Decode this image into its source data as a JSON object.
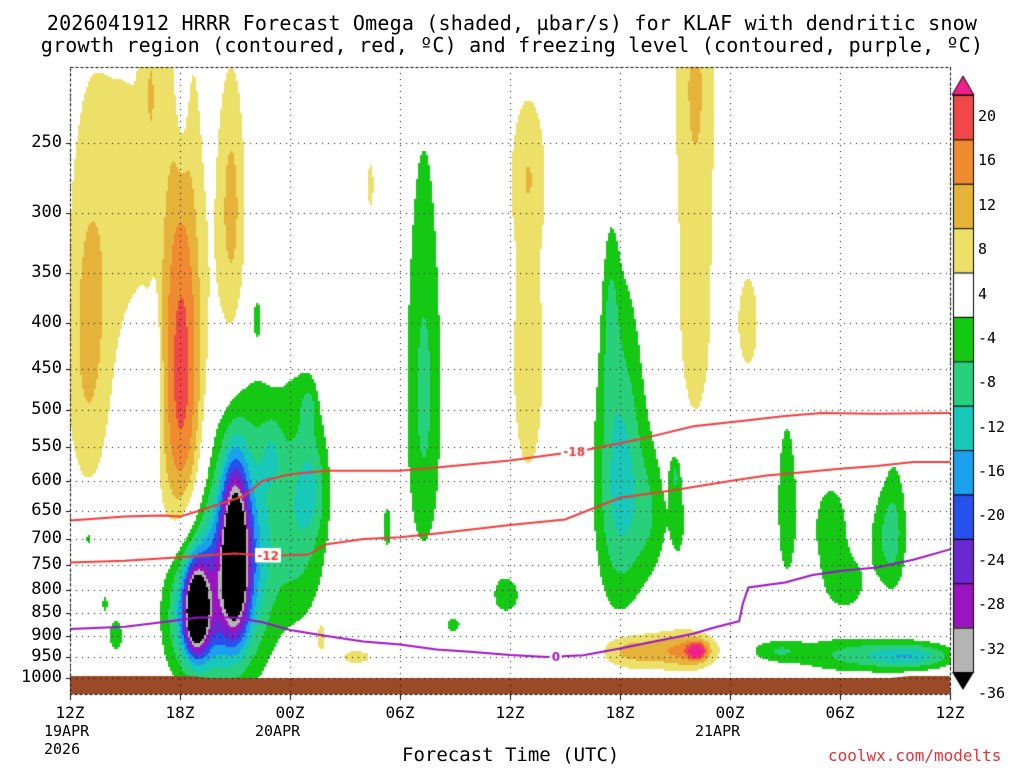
{
  "title": {
    "line1": "2026041912 HRRR Forecast Omega (shaded, µbar/s) for KLAF with dendritic snow",
    "line2": "growth region (contoured, red, ºC) and freezing level (contoured, purple, ºC)"
  },
  "chart_data": {
    "type": "heatmap",
    "title": "2026041912 HRRR Forecast Omega (shaded, µbar/s) for KLAF with dendritic snow growth region (contoured, red, ºC) and freezing level (contoured, purple, ºC)",
    "xlabel": "Forecast Time (UTC)",
    "ylabel": "",
    "x_range_hours": [
      0,
      48
    ],
    "y_range_hPa": [
      200,
      1025
    ],
    "y_ticks": [
      "250",
      "300",
      "350",
      "400",
      "450",
      "500",
      "550",
      "600",
      "650",
      "700",
      "750",
      "800",
      "850",
      "900",
      "950",
      "1000"
    ],
    "x_ticks": [
      {
        "label": "12Z",
        "hour": 0,
        "sub1": "19APR",
        "sub2": "2026"
      },
      {
        "label": "18Z",
        "hour": 6
      },
      {
        "label": "00Z",
        "hour": 12,
        "sub1": "20APR"
      },
      {
        "label": "06Z",
        "hour": 18
      },
      {
        "label": "12Z",
        "hour": 24
      },
      {
        "label": "18Z",
        "hour": 30
      },
      {
        "label": "00Z",
        "hour": 36,
        "sub1": "21APR"
      },
      {
        "label": "06Z",
        "hour": 42
      },
      {
        "label": "12Z",
        "hour": 48
      }
    ],
    "colorbar": {
      "labels": [
        "20",
        "16",
        "12",
        "8",
        "4",
        "-4",
        "-8",
        "-12",
        "-16",
        "-20",
        "-24",
        "-28",
        "-32",
        "-36"
      ],
      "colors": [
        "#f0208a",
        "#f04848",
        "#f08a30",
        "#e6b33a",
        "#ece068",
        "#ffffff",
        "#14c814",
        "#28d07c",
        "#18c8b8",
        "#1aa0ec",
        "#2850ec",
        "#6a28d2",
        "#9a14c0",
        "#b4b4b4",
        "#000000"
      ]
    },
    "blobs": [
      {
        "h": 1.0,
        "p": 415,
        "w": 1.3,
        "d": 200,
        "v": 9
      },
      {
        "h": 3.2,
        "p": 290,
        "w": 1.8,
        "d": 150,
        "v": 5
      },
      {
        "h": 4.4,
        "p": 210,
        "w": 0.5,
        "d": 60,
        "v": 5
      },
      {
        "h": 6.1,
        "p": 460,
        "w": 1.2,
        "d": 240,
        "v": 18
      },
      {
        "h": 6.1,
        "p": 210,
        "w": 0.4,
        "d": 60,
        "v": -6
      },
      {
        "h": 4.7,
        "p": 470,
        "w": 0.3,
        "d": 100,
        "v": -6
      },
      {
        "h": 8.8,
        "p": 380,
        "w": 1.0,
        "d": 200,
        "v": 6
      },
      {
        "h": 8.8,
        "p": 290,
        "w": 0.7,
        "d": 80,
        "v": 5
      },
      {
        "h": 10.2,
        "p": 395,
        "w": 0.2,
        "d": 20,
        "v": -6
      },
      {
        "h": 7.0,
        "p": 840,
        "w": 1.6,
        "d": 150,
        "v": -24
      },
      {
        "h": 6.9,
        "p": 845,
        "w": 0.55,
        "d": 80,
        "v": -37
      },
      {
        "h": 9.2,
        "p": 730,
        "w": 1.8,
        "d": 230,
        "v": -22
      },
      {
        "h": 9.0,
        "p": 735,
        "w": 0.65,
        "d": 140,
        "v": -38
      },
      {
        "h": 12.5,
        "p": 660,
        "w": 1.5,
        "d": 200,
        "v": -10
      },
      {
        "h": 11.0,
        "p": 560,
        "w": 0.6,
        "d": 50,
        "v": -6
      },
      {
        "h": 13.0,
        "p": 500,
        "w": 0.4,
        "d": 30,
        "v": -6
      },
      {
        "h": 13.2,
        "p": 610,
        "w": 0.8,
        "d": 80,
        "v": -6
      },
      {
        "h": 2.5,
        "p": 900,
        "w": 0.5,
        "d": 50,
        "v": -6
      },
      {
        "h": 1.9,
        "p": 830,
        "w": 0.2,
        "d": 20,
        "v": -6
      },
      {
        "h": 1.0,
        "p": 700,
        "w": 0.2,
        "d": 20,
        "v": -6
      },
      {
        "h": 13.7,
        "p": 900,
        "w": 0.3,
        "d": 40,
        "v": 8
      },
      {
        "h": 15.6,
        "p": 950,
        "w": 1.5,
        "d": 30,
        "v": 5
      },
      {
        "h": 16.4,
        "p": 280,
        "w": 0.3,
        "d": 30,
        "v": 5
      },
      {
        "h": 19.3,
        "p": 480,
        "w": 1.0,
        "d": 250,
        "v": -9
      },
      {
        "h": 17.3,
        "p": 680,
        "w": 0.3,
        "d": 50,
        "v": -6
      },
      {
        "h": 23.8,
        "p": 810,
        "w": 1.0,
        "d": 55,
        "v": -6
      },
      {
        "h": 20.9,
        "p": 875,
        "w": 0.5,
        "d": 20,
        "v": -6
      },
      {
        "h": 25.0,
        "p": 440,
        "w": 1.2,
        "d": 210,
        "v": 6
      },
      {
        "h": 25.0,
        "p": 270,
        "w": 1.0,
        "d": 50,
        "v": 5
      },
      {
        "h": 30.0,
        "p": 600,
        "w": 1.3,
        "d": 220,
        "v": -14
      },
      {
        "h": 31.7,
        "p": 660,
        "w": 1.0,
        "d": 120,
        "v": -6
      },
      {
        "h": 33.2,
        "p": 660,
        "w": 0.5,
        "d": 90,
        "v": -6
      },
      {
        "h": 29.5,
        "p": 400,
        "w": 0.4,
        "d": 80,
        "v": -6
      },
      {
        "h": 30.5,
        "p": 935,
        "w": 1.6,
        "d": 45,
        "v": 10
      },
      {
        "h": 33.5,
        "p": 935,
        "w": 1.8,
        "d": 45,
        "v": 13
      },
      {
        "h": 34.2,
        "p": 935,
        "w": 0.5,
        "d": 20,
        "v": 17
      },
      {
        "h": 34.1,
        "p": 360,
        "w": 1.3,
        "d": 220,
        "v": 6
      },
      {
        "h": 34.1,
        "p": 200,
        "w": 1.1,
        "d": 80,
        "v": 5
      },
      {
        "h": 37.0,
        "p": 400,
        "w": 1.0,
        "d": 90,
        "v": 5
      },
      {
        "h": 33.0,
        "p": 590,
        "w": 0.3,
        "d": 30,
        "v": -6
      },
      {
        "h": 39.1,
        "p": 640,
        "w": 0.7,
        "d": 180,
        "v": -6
      },
      {
        "h": 41.5,
        "p": 680,
        "w": 1.2,
        "d": 100,
        "v": -6
      },
      {
        "h": 42.3,
        "p": 790,
        "w": 1.2,
        "d": 60,
        "v": -6
      },
      {
        "h": 44.4,
        "p": 700,
        "w": 0.9,
        "d": 90,
        "v": -6
      },
      {
        "h": 45.0,
        "p": 680,
        "w": 0.7,
        "d": 130,
        "v": -6
      },
      {
        "h": 43.0,
        "p": 945,
        "w": 3.8,
        "d": 42,
        "v": -9
      },
      {
        "h": 46.0,
        "p": 948,
        "w": 2.2,
        "d": 28,
        "v": -11
      },
      {
        "h": 38.5,
        "p": 935,
        "w": 1.4,
        "d": 25,
        "v": -6
      }
    ],
    "contours": [
      {
        "label": "-18",
        "color": "#f03c3c",
        "label_hour": 27.5,
        "points": [
          [
            0,
            667
          ],
          [
            3,
            660
          ],
          [
            5,
            658
          ],
          [
            6,
            660
          ],
          [
            7,
            650
          ],
          [
            8,
            640
          ],
          [
            9.5,
            625
          ],
          [
            10.5,
            600
          ],
          [
            12,
            590
          ],
          [
            14,
            585
          ],
          [
            16,
            585
          ],
          [
            18,
            585
          ],
          [
            20,
            580
          ],
          [
            24,
            570
          ],
          [
            28,
            555
          ],
          [
            31,
            540
          ],
          [
            34,
            522
          ],
          [
            35.5,
            518
          ],
          [
            37,
            514
          ],
          [
            39,
            508
          ],
          [
            41,
            504
          ],
          [
            44,
            505
          ],
          [
            48,
            504
          ]
        ]
      },
      {
        "label": "-12",
        "color": "#f03c3c",
        "label_hour": 10.8,
        "points": [
          [
            0,
            745
          ],
          [
            3,
            742
          ],
          [
            6,
            735
          ],
          [
            8,
            730
          ],
          [
            9,
            728
          ],
          [
            11,
            732
          ],
          [
            13,
            730
          ],
          [
            14,
            710
          ],
          [
            16,
            700
          ],
          [
            18,
            697
          ],
          [
            20,
            690
          ],
          [
            24,
            675
          ],
          [
            27,
            665
          ],
          [
            30,
            628
          ],
          [
            33,
            615
          ],
          [
            36,
            600
          ],
          [
            38,
            592
          ],
          [
            40,
            587
          ],
          [
            42,
            582
          ],
          [
            44,
            578
          ],
          [
            46,
            572
          ],
          [
            48,
            572
          ]
        ]
      },
      {
        "label": "0",
        "color": "#9b14c8",
        "label_hour": 26.5,
        "points": [
          [
            0,
            885
          ],
          [
            3,
            880
          ],
          [
            5,
            870
          ],
          [
            7,
            860
          ],
          [
            9,
            860
          ],
          [
            10.5,
            870
          ],
          [
            12,
            887
          ],
          [
            14,
            900
          ],
          [
            16,
            913
          ],
          [
            18,
            920
          ],
          [
            20,
            932
          ],
          [
            22,
            938
          ],
          [
            24,
            945
          ],
          [
            26,
            950
          ],
          [
            28,
            946
          ],
          [
            30,
            930
          ],
          [
            32,
            912
          ],
          [
            34,
            895
          ],
          [
            35,
            883
          ],
          [
            36,
            873
          ],
          [
            36.5,
            868
          ],
          [
            36.7,
            830
          ],
          [
            37,
            795
          ],
          [
            39,
            785
          ],
          [
            40.5,
            770
          ],
          [
            42,
            762
          ],
          [
            44,
            755
          ],
          [
            46,
            740
          ],
          [
            48,
            720
          ]
        ]
      }
    ]
  },
  "footer": {
    "xlabel": "Forecast Time (UTC)",
    "credit": "coolwx.com/modelts"
  }
}
